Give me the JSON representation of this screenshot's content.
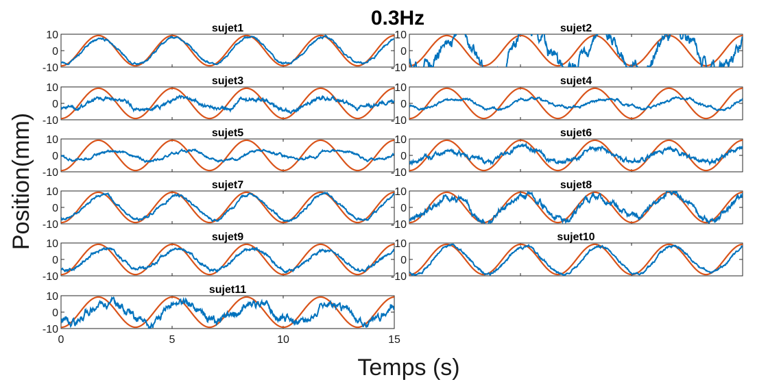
{
  "chart_data": {
    "type": "line",
    "title": "0.3Hz",
    "xlabel": "Temps (s)",
    "ylabel": "Position(mm)",
    "xlim": [
      0,
      15
    ],
    "ylim": [
      -10,
      10
    ],
    "xticks": [
      0,
      5,
      10,
      15
    ],
    "yticks": [
      -10,
      0,
      10
    ],
    "grid": false,
    "colors": {
      "measured": "#0072BD",
      "reference": "#D95319"
    },
    "reference_signal": {
      "frequency_hz": 0.3,
      "amplitude_mm": 9.2,
      "phase_offset_s": 0.85
    },
    "subplots": [
      {
        "title": "sujet1",
        "measured": {
          "gain": 0.85,
          "lag": 0.15,
          "drift": 0.0,
          "noise": 0.8
        }
      },
      {
        "title": "sujet2",
        "measured": {
          "gain": 1.25,
          "lag": 0.4,
          "drift": 0.0,
          "noise": 5.0
        }
      },
      {
        "title": "sujet3",
        "measured": {
          "gain": 0.35,
          "lag": 0.3,
          "drift": 0.0,
          "noise": 1.6
        }
      },
      {
        "title": "sujet4",
        "measured": {
          "gain": 0.35,
          "lag": 0.5,
          "drift": 0.0,
          "noise": 1.0
        }
      },
      {
        "title": "sujet5",
        "measured": {
          "gain": 0.3,
          "lag": 0.7,
          "drift": 0.0,
          "noise": 1.0
        }
      },
      {
        "title": "sujet6",
        "measured": {
          "gain": 0.45,
          "lag": 0.1,
          "drift": 0.0,
          "noise": 1.8
        }
      },
      {
        "title": "sujet7",
        "measured": {
          "gain": 0.8,
          "lag": 0.2,
          "drift": 0.0,
          "noise": 1.0
        }
      },
      {
        "title": "sujet8",
        "measured": {
          "gain": 0.75,
          "lag": 0.15,
          "drift": 0.0,
          "noise": 2.4
        }
      },
      {
        "title": "sujet9",
        "measured": {
          "gain": 0.7,
          "lag": 0.25,
          "drift": 0.0,
          "noise": 1.2
        }
      },
      {
        "title": "sujet10",
        "measured": {
          "gain": 0.9,
          "lag": 0.2,
          "drift": 0.0,
          "noise": 1.0
        }
      },
      {
        "title": "sujet11",
        "measured": {
          "gain": 0.7,
          "lag": 0.4,
          "drift": 0.0,
          "noise": 3.0
        }
      }
    ]
  }
}
